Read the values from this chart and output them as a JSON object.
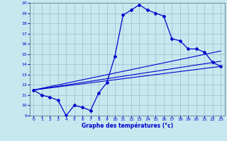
{
  "title": "Graphe des températures (°c)",
  "bg_color": "#c8e8f0",
  "grid_color": "#a8c8d8",
  "line_color": "#0000cc",
  "xlim": [
    -0.5,
    23.5
  ],
  "ylim": [
    9,
    20
  ],
  "xticks": [
    0,
    1,
    2,
    3,
    4,
    5,
    6,
    7,
    8,
    9,
    10,
    11,
    12,
    13,
    14,
    15,
    16,
    17,
    18,
    19,
    20,
    21,
    22,
    23
  ],
  "yticks": [
    9,
    10,
    11,
    12,
    13,
    14,
    15,
    16,
    17,
    18,
    19,
    20
  ],
  "series1_x": [
    0,
    1,
    2,
    3,
    4,
    5,
    6,
    7,
    8,
    9,
    10,
    11,
    12,
    13,
    14,
    15,
    16,
    17,
    18,
    19,
    20,
    21,
    22,
    23
  ],
  "series1_y": [
    11.5,
    11.0,
    10.8,
    10.5,
    9.0,
    10.0,
    9.8,
    9.5,
    11.2,
    12.2,
    14.8,
    18.8,
    19.3,
    19.8,
    19.3,
    19.0,
    18.7,
    16.5,
    16.3,
    15.5,
    15.5,
    15.2,
    14.2,
    13.8
  ],
  "line2_x": [
    0,
    23
  ],
  "line2_y": [
    11.5,
    13.8
  ],
  "line3_x": [
    0,
    23
  ],
  "line3_y": [
    11.5,
    15.3
  ],
  "line4_x": [
    0,
    23
  ],
  "line4_y": [
    11.5,
    14.3
  ]
}
